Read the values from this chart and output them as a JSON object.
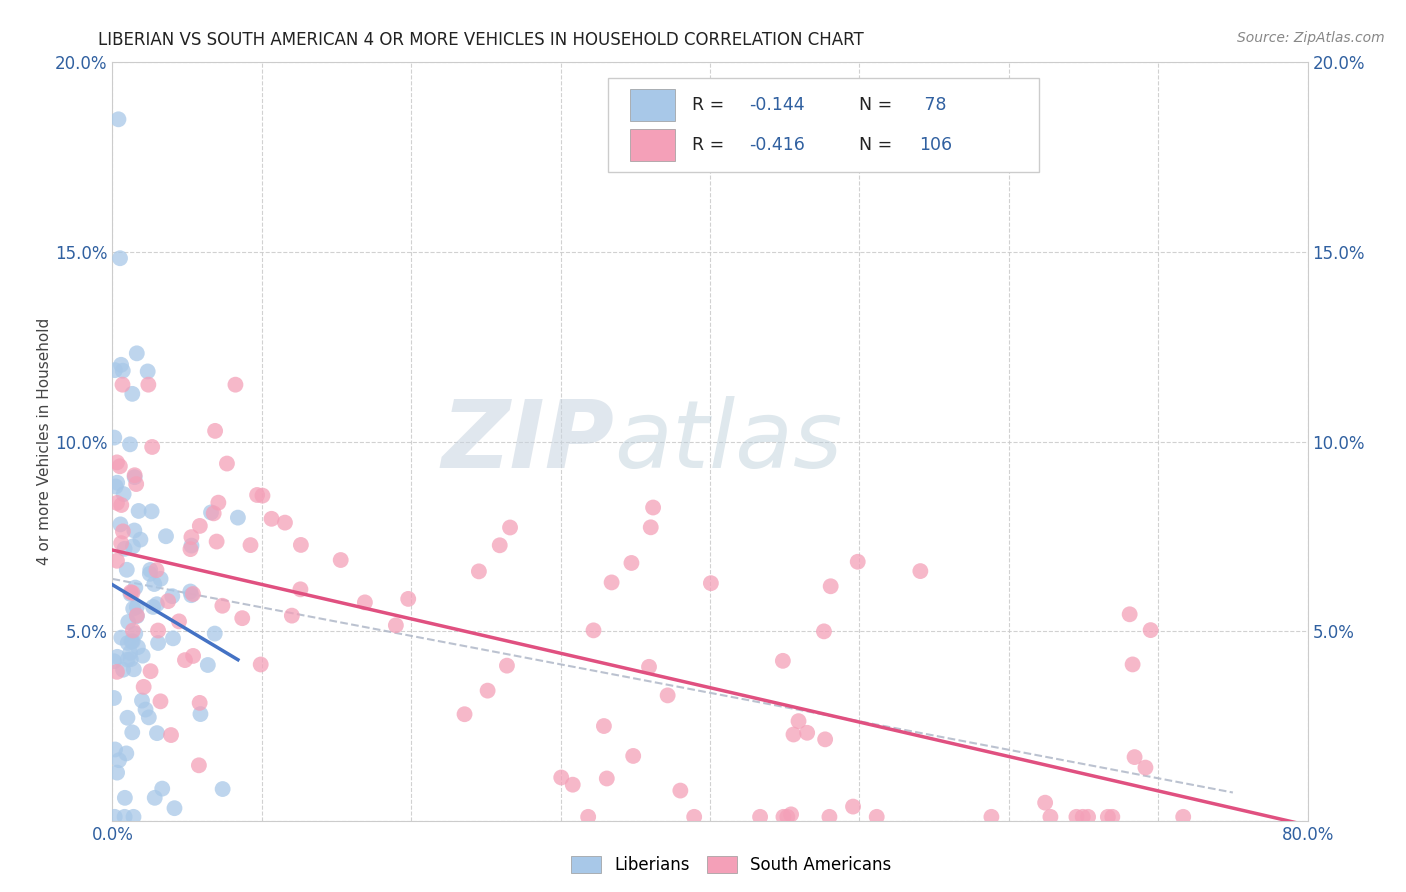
{
  "title": "LIBERIAN VS SOUTH AMERICAN 4 OR MORE VEHICLES IN HOUSEHOLD CORRELATION CHART",
  "source": "Source: ZipAtlas.com",
  "ylabel": "4 or more Vehicles in Household",
  "xlim": [
    0.0,
    0.8
  ],
  "ylim": [
    0.0,
    0.2
  ],
  "xtick_vals": [
    0.0,
    0.1,
    0.2,
    0.3,
    0.4,
    0.5,
    0.6,
    0.7,
    0.8
  ],
  "xtick_labels": [
    "0.0%",
    "",
    "",
    "",
    "",
    "",
    "",
    "",
    "80.0%"
  ],
  "ytick_vals": [
    0.0,
    0.05,
    0.1,
    0.15,
    0.2
  ],
  "ytick_labels_left": [
    "",
    "5.0%",
    "10.0%",
    "15.0%",
    "20.0%"
  ],
  "ytick_labels_right": [
    "",
    "5.0%",
    "10.0%",
    "15.0%",
    "20.0%"
  ],
  "liberian_R": -0.144,
  "liberian_N": 78,
  "south_american_R": -0.416,
  "south_american_N": 106,
  "liberian_color": "#a8c8e8",
  "south_american_color": "#f4a0b8",
  "liberian_line_color": "#4472c4",
  "south_american_line_color": "#e05080",
  "trend_line_color": "#b0b8c8",
  "watermark_zip": "ZIP",
  "watermark_atlas": "atlas",
  "background_color": "#ffffff",
  "grid_color": "#cccccc",
  "tick_color": "#3060a0",
  "label_color": "#444444",
  "legend_border": "#cccccc",
  "source_color": "#888888",
  "dot_size": 130,
  "dot_alpha": 0.75
}
